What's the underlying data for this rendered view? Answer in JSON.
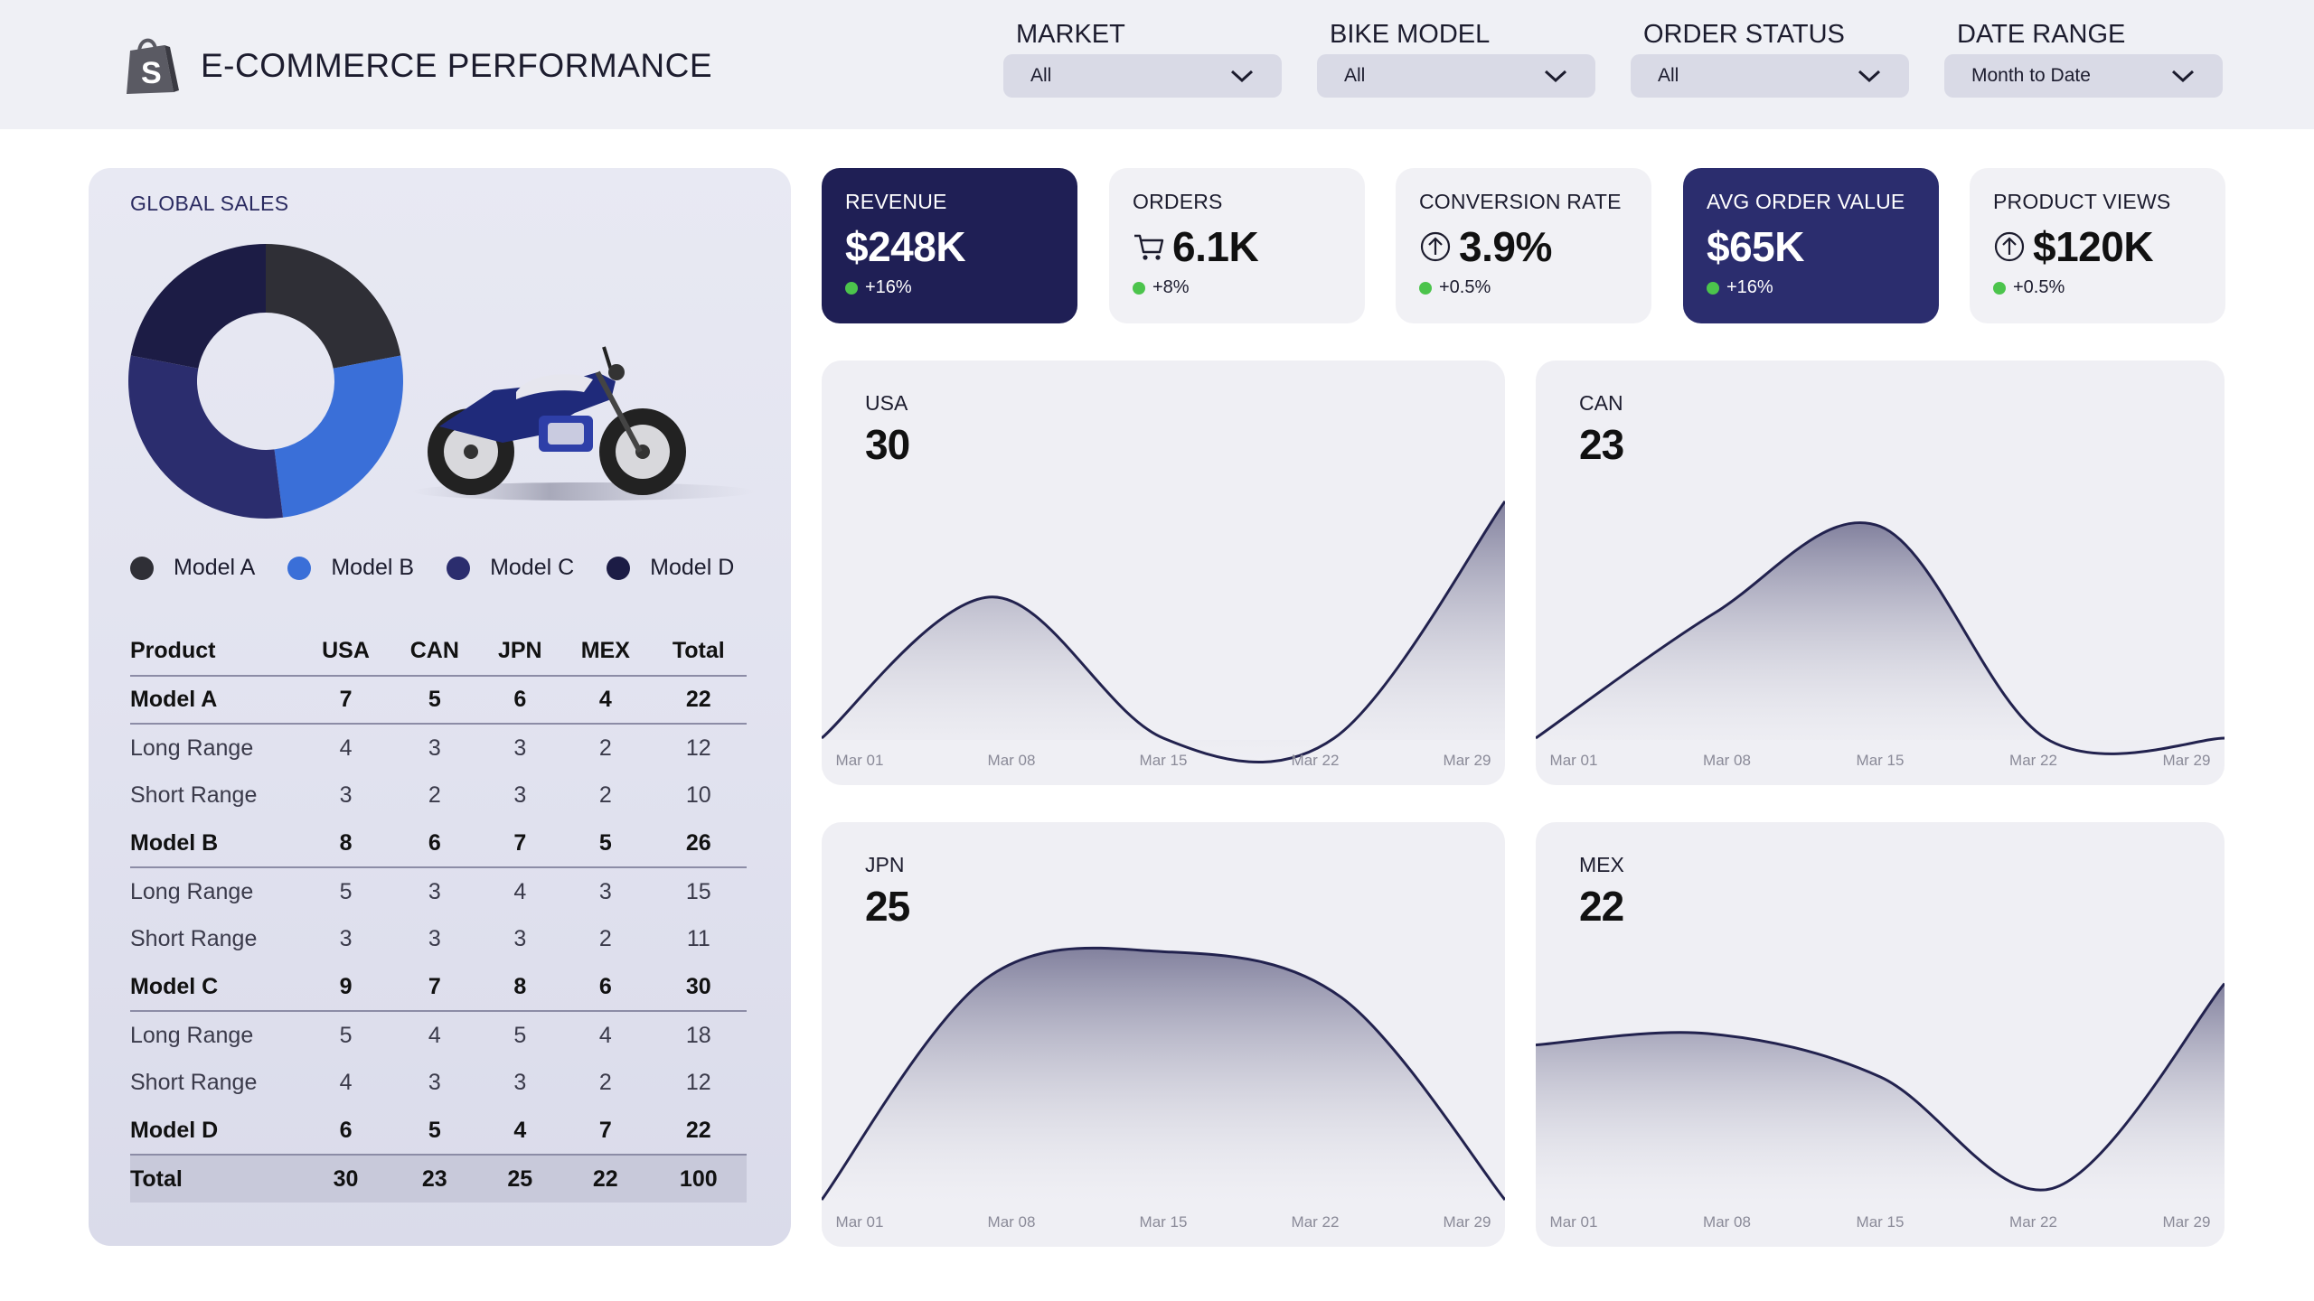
{
  "header": {
    "title": "E-COMMERCE PERFORMANCE",
    "logo_icon": "shopping-bag-icon",
    "filters": [
      {
        "label": "MARKET",
        "value": "All"
      },
      {
        "label": "BIKE MODEL",
        "value": "All"
      },
      {
        "label": "ORDER STATUS",
        "value": "All"
      },
      {
        "label": "DATE RANGE",
        "value": "Month to Date"
      }
    ]
  },
  "global_sales": {
    "title": "GLOBAL SALES",
    "donut": [
      {
        "name": "Model A",
        "value": 22,
        "color": "#2f2f36"
      },
      {
        "name": "Model B",
        "value": 26,
        "color": "#3a6fd8"
      },
      {
        "name": "Model C",
        "value": 30,
        "color": "#2b2d6e"
      },
      {
        "name": "Model D",
        "value": 22,
        "color": "#1c1c45"
      }
    ],
    "legend": [
      {
        "label": "Model A",
        "color": "#2f2f36"
      },
      {
        "label": "Model B",
        "color": "#3a6fd8"
      },
      {
        "label": "Model C",
        "color": "#2b2d6e"
      },
      {
        "label": "Model D",
        "color": "#1c1c45"
      }
    ],
    "table": {
      "headers": [
        "Product",
        "USA",
        "CAN",
        "JPN",
        "MEX",
        "Total"
      ],
      "rows": [
        {
          "type": "model",
          "cells": [
            "Model A",
            "7",
            "5",
            "6",
            "4",
            "22"
          ]
        },
        {
          "type": "sub",
          "cells": [
            "Long Range",
            "4",
            "3",
            "3",
            "2",
            "12"
          ]
        },
        {
          "type": "sub",
          "cells": [
            "Short Range",
            "3",
            "2",
            "3",
            "2",
            "10"
          ]
        },
        {
          "type": "model",
          "cells": [
            "Model B",
            "8",
            "6",
            "7",
            "5",
            "26"
          ]
        },
        {
          "type": "sub",
          "cells": [
            "Long Range",
            "5",
            "3",
            "4",
            "3",
            "15"
          ]
        },
        {
          "type": "sub",
          "cells": [
            "Short Range",
            "3",
            "3",
            "3",
            "2",
            "11"
          ]
        },
        {
          "type": "model",
          "cells": [
            "Model C",
            "9",
            "7",
            "8",
            "6",
            "30"
          ]
        },
        {
          "type": "sub",
          "cells": [
            "Long Range",
            "5",
            "4",
            "5",
            "4",
            "18"
          ]
        },
        {
          "type": "sub",
          "cells": [
            "Short Range",
            "4",
            "3",
            "3",
            "2",
            "12"
          ]
        },
        {
          "type": "model",
          "cells": [
            "Model D",
            "6",
            "5",
            "4",
            "7",
            "22"
          ]
        },
        {
          "type": "total",
          "cells": [
            "Total",
            "30",
            "23",
            "25",
            "22",
            "100"
          ]
        }
      ]
    }
  },
  "kpis": [
    {
      "label": "REVENUE",
      "value": "$248K",
      "delta": "+16%",
      "style": "dark",
      "icon": ""
    },
    {
      "label": "ORDERS",
      "value": "6.1K",
      "delta": "+8%",
      "style": "light",
      "icon": "cart-icon"
    },
    {
      "label": "CONVERSION RATE",
      "value": "3.9%",
      "delta": "+0.5%",
      "style": "light",
      "icon": "arrow-up-circle-icon"
    },
    {
      "label": "AVG ORDER VALUE",
      "value": "$65K",
      "delta": "+16%",
      "style": "mid",
      "icon": ""
    },
    {
      "label": "PRODUCT VIEWS",
      "value": "$120K",
      "delta": "+0.5%",
      "style": "light",
      "icon": "arrow-up-circle-icon"
    }
  ],
  "chart_data": [
    {
      "type": "area",
      "name": "USA",
      "value": "30",
      "x": [
        "Mar 01",
        "Mar 08",
        "Mar 15",
        "Mar 22",
        "Mar 29"
      ],
      "points": [
        [
          0,
          0
        ],
        [
          0.25,
          0.62
        ],
        [
          0.5,
          0
        ],
        [
          0.75,
          0
        ],
        [
          1,
          1.04
        ]
      ]
    },
    {
      "type": "area",
      "name": "CAN",
      "value": "23",
      "x": [
        "Mar 01",
        "Mar 08",
        "Mar 15",
        "Mar 22",
        "Mar 29"
      ],
      "points": [
        [
          0,
          0
        ],
        [
          0.26,
          0.55
        ],
        [
          0.5,
          0.93
        ],
        [
          0.74,
          0
        ],
        [
          1,
          0
        ]
      ]
    },
    {
      "type": "area",
      "name": "JPN",
      "value": "25",
      "x": [
        "Mar 01",
        "Mar 08",
        "Mar 15",
        "Mar 22",
        "Mar 29"
      ],
      "points": [
        [
          0,
          0
        ],
        [
          0.24,
          0.97
        ],
        [
          0.5,
          1.09
        ],
        [
          0.76,
          0.89
        ],
        [
          1,
          0
        ]
      ]
    },
    {
      "type": "area",
      "name": "MEX",
      "value": "22",
      "x": [
        "Mar 01",
        "Mar 08",
        "Mar 15",
        "Mar 22",
        "Mar 29"
      ],
      "points": [
        [
          0,
          0.68
        ],
        [
          0.25,
          0.73
        ],
        [
          0.5,
          0.54
        ],
        [
          0.75,
          0.05
        ],
        [
          1,
          0.95
        ]
      ]
    }
  ]
}
